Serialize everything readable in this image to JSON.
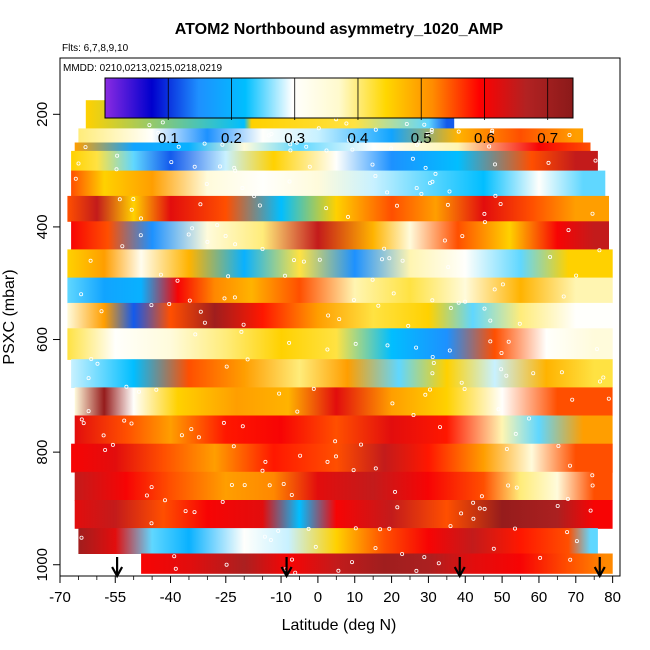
{
  "chart_data": {
    "type": "heatmap",
    "title": "ATOM2 Northbound asymmetry_1020_AMP",
    "flights_note": "Flts: 6,7,8,9,10",
    "dates_note": "MMDD: 0210,0213,0215,0218,0219",
    "xlabel": "Latitude (deg N)",
    "ylabel": "PSXC (mbar)",
    "xlim": [
      -70,
      82
    ],
    "ylim": [
      1020,
      100
    ],
    "x_ticks": [
      -70,
      -55,
      -40,
      -25,
      -10,
      0,
      10,
      20,
      30,
      40,
      50,
      60,
      70,
      80
    ],
    "y_ticks": [
      200,
      400,
      600,
      800,
      1000
    ],
    "colorbar": {
      "range": [
        0.0,
        0.74
      ],
      "ticks": [
        0.1,
        0.2,
        0.3,
        0.4,
        0.5,
        0.6,
        0.7
      ],
      "tick_labels": [
        "0.1",
        "0.2",
        "0.3",
        "0.4",
        "0.5",
        "0.6",
        "0.7"
      ],
      "colors": [
        "#8a2be2",
        "#0000cd",
        "#1e90ff",
        "#00bfff",
        "#ffffff",
        "#fffacd",
        "#ffd700",
        "#ff8c00",
        "#ff0000",
        "#b22222",
        "#8b1a1a"
      ]
    },
    "profile_latitudes": [
      -54.5,
      -8.5,
      38.5,
      76.5
    ],
    "bands": [
      {
        "p_top": 175,
        "p_bottom": 225,
        "lat_min": -63,
        "lat_max": 37,
        "segments": [
          [
            -63,
            0.45
          ],
          [
            -20,
            0.22
          ],
          [
            -18,
            0.45
          ],
          [
            10,
            0.42
          ],
          [
            30,
            0.25
          ],
          [
            35,
            0.12
          ]
        ]
      },
      {
        "p_top": 225,
        "p_bottom": 250,
        "lat_min": -65,
        "lat_max": 72,
        "segments": [
          [
            -65,
            0.4
          ],
          [
            -45,
            0.3
          ],
          [
            -30,
            0.15
          ],
          [
            -15,
            0.3
          ],
          [
            0,
            0.28
          ],
          [
            20,
            0.18
          ],
          [
            38,
            0.48
          ],
          [
            55,
            0.55
          ],
          [
            70,
            0.5
          ]
        ]
      },
      {
        "p_top": 250,
        "p_bottom": 265,
        "lat_min": -66,
        "lat_max": 74,
        "segments": [
          [
            -66,
            0.5
          ],
          [
            -50,
            0.18
          ],
          [
            -35,
            0.2
          ],
          [
            -20,
            0.35
          ],
          [
            -5,
            0.25
          ],
          [
            15,
            0.3
          ],
          [
            38,
            0.38
          ],
          [
            60,
            0.6
          ],
          [
            74,
            0.55
          ]
        ]
      },
      {
        "p_top": 265,
        "p_bottom": 300,
        "lat_min": -67,
        "lat_max": 76,
        "segments": [
          [
            -67,
            0.45
          ],
          [
            -60,
            0.42
          ],
          [
            -50,
            0.25
          ],
          [
            -40,
            0.12
          ],
          [
            -25,
            0.28
          ],
          [
            -12,
            0.45
          ],
          [
            5,
            0.3
          ],
          [
            20,
            0.15
          ],
          [
            38,
            0.22
          ],
          [
            58,
            0.55
          ],
          [
            70,
            0.65
          ]
        ]
      },
      {
        "p_top": 300,
        "p_bottom": 345,
        "lat_min": -67,
        "lat_max": 78,
        "segments": [
          [
            -67,
            0.55
          ],
          [
            -58,
            0.45
          ],
          [
            -45,
            0.5
          ],
          [
            -30,
            0.35
          ],
          [
            -15,
            0.3
          ],
          [
            0,
            0.35
          ],
          [
            15,
            0.28
          ],
          [
            30,
            0.25
          ],
          [
            45,
            0.22
          ],
          [
            60,
            0.3
          ],
          [
            72,
            0.25
          ]
        ]
      },
      {
        "p_top": 345,
        "p_bottom": 390,
        "lat_min": -68,
        "lat_max": 79,
        "segments": [
          [
            -68,
            0.55
          ],
          [
            -60,
            0.65
          ],
          [
            -50,
            0.45
          ],
          [
            -40,
            0.62
          ],
          [
            -25,
            0.55
          ],
          [
            -10,
            0.22
          ],
          [
            5,
            0.45
          ],
          [
            20,
            0.55
          ],
          [
            32,
            0.5
          ],
          [
            45,
            0.62
          ],
          [
            58,
            0.55
          ],
          [
            70,
            0.5
          ]
        ]
      },
      {
        "p_top": 390,
        "p_bottom": 440,
        "lat_min": -67,
        "lat_max": 79,
        "segments": [
          [
            -67,
            0.6
          ],
          [
            -57,
            0.55
          ],
          [
            -45,
            0.15
          ],
          [
            -30,
            0.35
          ],
          [
            -15,
            0.4
          ],
          [
            0,
            0.65
          ],
          [
            15,
            0.48
          ],
          [
            25,
            0.35
          ],
          [
            38,
            0.55
          ],
          [
            52,
            0.45
          ],
          [
            65,
            0.6
          ],
          [
            75,
            0.65
          ]
        ]
      },
      {
        "p_top": 440,
        "p_bottom": 490,
        "lat_min": -68,
        "lat_max": 80,
        "segments": [
          [
            -68,
            0.45
          ],
          [
            -58,
            0.5
          ],
          [
            -48,
            0.32
          ],
          [
            -35,
            0.48
          ],
          [
            -20,
            0.2
          ],
          [
            -5,
            0.42
          ],
          [
            10,
            0.15
          ],
          [
            25,
            0.38
          ],
          [
            40,
            0.3
          ],
          [
            55,
            0.25
          ],
          [
            68,
            0.45
          ]
        ]
      },
      {
        "p_top": 490,
        "p_bottom": 535,
        "lat_min": -68,
        "lat_max": 80,
        "segments": [
          [
            -68,
            0.25
          ],
          [
            -58,
            0.18
          ],
          [
            -48,
            0.2
          ],
          [
            -38,
            0.6
          ],
          [
            -28,
            0.52
          ],
          [
            -18,
            0.48
          ],
          [
            -5,
            0.55
          ],
          [
            10,
            0.38
          ],
          [
            25,
            0.42
          ],
          [
            40,
            0.35
          ],
          [
            55,
            0.48
          ],
          [
            70,
            0.38
          ]
        ]
      },
      {
        "p_top": 535,
        "p_bottom": 580,
        "lat_min": -68,
        "lat_max": 80,
        "segments": [
          [
            -68,
            0.35
          ],
          [
            -58,
            0.5
          ],
          [
            -50,
            0.12
          ],
          [
            -40,
            0.55
          ],
          [
            -28,
            0.7
          ],
          [
            -15,
            0.58
          ],
          [
            0,
            0.5
          ],
          [
            15,
            0.42
          ],
          [
            30,
            0.45
          ],
          [
            42,
            0.25
          ],
          [
            55,
            0.4
          ],
          [
            70,
            0.3
          ]
        ]
      },
      {
        "p_top": 580,
        "p_bottom": 635,
        "lat_min": -68,
        "lat_max": 80,
        "segments": [
          [
            -68,
            0.42
          ],
          [
            -55,
            0.3
          ],
          [
            -40,
            0.35
          ],
          [
            -25,
            0.4
          ],
          [
            -10,
            0.45
          ],
          [
            5,
            0.42
          ],
          [
            20,
            0.22
          ],
          [
            35,
            0.15
          ],
          [
            48,
            0.55
          ],
          [
            62,
            0.3
          ],
          [
            75,
            0.35
          ]
        ]
      },
      {
        "p_top": 635,
        "p_bottom": 685,
        "lat_min": -67,
        "lat_max": 80,
        "segments": [
          [
            -67,
            0.28
          ],
          [
            -50,
            0.22
          ],
          [
            -35,
            0.55
          ],
          [
            -20,
            0.5
          ],
          [
            -5,
            0.4
          ],
          [
            8,
            0.5
          ],
          [
            22,
            0.25
          ],
          [
            35,
            0.45
          ],
          [
            48,
            0.28
          ],
          [
            62,
            0.48
          ],
          [
            75,
            0.42
          ]
        ]
      },
      {
        "p_top": 685,
        "p_bottom": 735,
        "lat_min": -66,
        "lat_max": 80,
        "segments": [
          [
            -66,
            0.35
          ],
          [
            -58,
            0.72
          ],
          [
            -50,
            0.3
          ],
          [
            -38,
            0.45
          ],
          [
            -22,
            0.5
          ],
          [
            -8,
            0.48
          ],
          [
            5,
            0.62
          ],
          [
            20,
            0.5
          ],
          [
            35,
            0.45
          ],
          [
            50,
            0.3
          ],
          [
            65,
            0.55
          ]
        ]
      },
      {
        "p_top": 735,
        "p_bottom": 785,
        "lat_min": -66,
        "lat_max": 80,
        "segments": [
          [
            -66,
            0.62
          ],
          [
            -52,
            0.55
          ],
          [
            -40,
            0.5
          ],
          [
            -25,
            0.58
          ],
          [
            -10,
            0.6
          ],
          [
            5,
            0.55
          ],
          [
            20,
            0.62
          ],
          [
            35,
            0.58
          ],
          [
            50,
            0.38
          ],
          [
            60,
            0.25
          ],
          [
            72,
            0.5
          ]
        ]
      },
      {
        "p_top": 785,
        "p_bottom": 835,
        "lat_min": -67,
        "lat_max": 80,
        "segments": [
          [
            -67,
            0.6
          ],
          [
            -55,
            0.62
          ],
          [
            -42,
            0.55
          ],
          [
            -28,
            0.5
          ],
          [
            -12,
            0.58
          ],
          [
            5,
            0.55
          ],
          [
            18,
            0.65
          ],
          [
            30,
            0.58
          ],
          [
            45,
            0.5
          ],
          [
            58,
            0.35
          ],
          [
            70,
            0.55
          ]
        ]
      },
      {
        "p_top": 835,
        "p_bottom": 885,
        "lat_min": -66,
        "lat_max": 80,
        "segments": [
          [
            -66,
            0.65
          ],
          [
            -52,
            0.6
          ],
          [
            -40,
            0.55
          ],
          [
            -25,
            0.5
          ],
          [
            -12,
            0.52
          ],
          [
            0,
            0.62
          ],
          [
            15,
            0.65
          ],
          [
            30,
            0.6
          ],
          [
            45,
            0.55
          ],
          [
            55,
            0.4
          ],
          [
            65,
            0.35
          ],
          [
            75,
            0.55
          ]
        ]
      },
      {
        "p_top": 885,
        "p_bottom": 935,
        "lat_min": -66,
        "lat_max": 80,
        "segments": [
          [
            -66,
            0.62
          ],
          [
            -55,
            0.65
          ],
          [
            -42,
            0.55
          ],
          [
            -30,
            0.6
          ],
          [
            -15,
            0.62
          ],
          [
            -5,
            0.22
          ],
          [
            5,
            0.6
          ],
          [
            20,
            0.65
          ],
          [
            35,
            0.55
          ],
          [
            50,
            0.72
          ],
          [
            65,
            0.68
          ],
          [
            75,
            0.6
          ]
        ]
      },
      {
        "p_top": 935,
        "p_bottom": 980,
        "lat_min": -65,
        "lat_max": 76,
        "segments": [
          [
            -65,
            0.7
          ],
          [
            -55,
            0.62
          ],
          [
            -45,
            0.25
          ],
          [
            -35,
            0.2
          ],
          [
            -20,
            0.3
          ],
          [
            -8,
            0.28
          ],
          [
            5,
            0.45
          ],
          [
            18,
            0.55
          ],
          [
            30,
            0.6
          ],
          [
            42,
            0.65
          ],
          [
            55,
            0.58
          ],
          [
            68,
            0.55
          ],
          [
            74,
            0.25
          ]
        ]
      },
      {
        "p_top": 980,
        "p_bottom": 1015,
        "lat_min": -48,
        "lat_max": 80,
        "segments": [
          [
            -48,
            0.6
          ],
          [
            -35,
            0.62
          ],
          [
            -20,
            0.68
          ],
          [
            -8,
            0.6
          ],
          [
            5,
            0.65
          ],
          [
            18,
            0.7
          ],
          [
            30,
            0.68
          ],
          [
            42,
            0.62
          ],
          [
            55,
            0.6
          ],
          [
            68,
            0.55
          ],
          [
            78,
            0.52
          ]
        ]
      }
    ]
  }
}
